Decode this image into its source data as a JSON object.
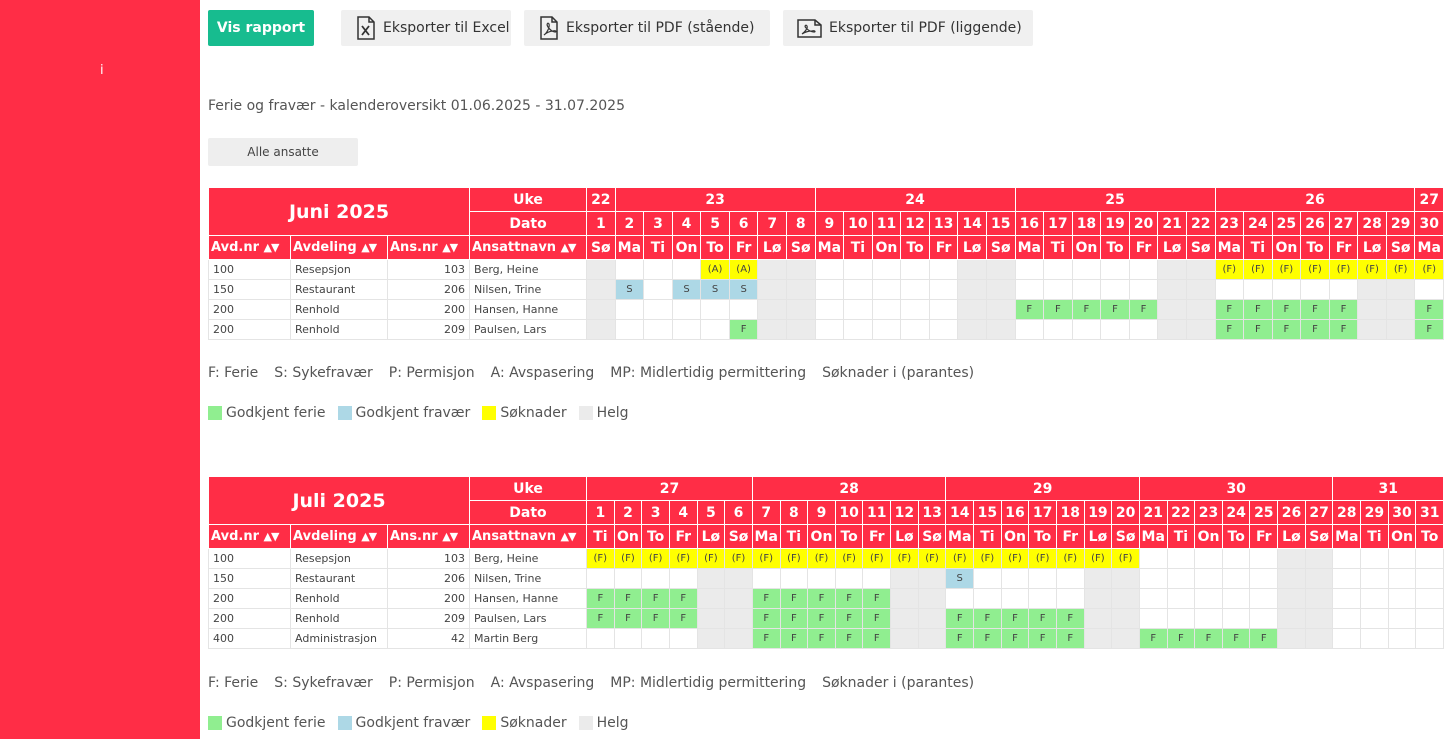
{
  "sidebar": {
    "mark": "i"
  },
  "toolbar": {
    "show_report": "Vis rapport",
    "export_excel": "Eksporter til Excel",
    "export_pdf_portrait": "Eksporter til PDF (stående)",
    "export_pdf_landscape": "Eksporter til PDF (liggende)"
  },
  "report_title": "Ferie og fravær - kalenderoversikt 01.06.2025 - 31.07.2025",
  "filter_label": "Alle ansatte",
  "legend": {
    "codes": [
      "F: Ferie",
      "S: Sykefravær",
      "P: Permisjon",
      "A: Avspasering",
      "MP: Midlertidig permittering",
      "Søknader i (parantes)"
    ],
    "colors": [
      {
        "label": "Godkjent ferie",
        "color": "#90ee90"
      },
      {
        "label": "Godkjent fravær",
        "color": "#add8e6"
      },
      {
        "label": "Søknader",
        "color": "#ffff00"
      },
      {
        "label": "Helg",
        "color": "#ebebeb"
      }
    ]
  },
  "columns": {
    "week": "Uke",
    "date": "Dato",
    "dept_no": "Avd.nr",
    "dept": "Avdeling",
    "emp_no": "Ans.nr",
    "emp_name": "Ansattnavn",
    "sort_arrows": "▲▼"
  },
  "months": [
    {
      "title": "Juni 2025",
      "start_weekday": 6,
      "days": 30,
      "weeks": [
        {
          "label": "22",
          "span": 1
        },
        {
          "label": "23",
          "span": 7
        },
        {
          "label": "24",
          "span": 7
        },
        {
          "label": "25",
          "span": 7
        },
        {
          "label": "26",
          "span": 7
        },
        {
          "label": "27",
          "span": 1
        }
      ],
      "rows": [
        {
          "dept_no": "100",
          "dept": "Resepsjon",
          "emp_no": "103",
          "name": "Berg, Heine",
          "entries": [
            {
              "day": 5,
              "code": "(A)",
              "type": "A"
            },
            {
              "day": 6,
              "code": "(A)",
              "type": "A"
            },
            {
              "day": 23,
              "code": "(F)",
              "type": "A"
            },
            {
              "day": 24,
              "code": "(F)",
              "type": "A"
            },
            {
              "day": 25,
              "code": "(F)",
              "type": "A"
            },
            {
              "day": 26,
              "code": "(F)",
              "type": "A"
            },
            {
              "day": 27,
              "code": "(F)",
              "type": "A"
            },
            {
              "day": 28,
              "code": "(F)",
              "type": "A"
            },
            {
              "day": 29,
              "code": "(F)",
              "type": "A"
            },
            {
              "day": 30,
              "code": "(F)",
              "type": "A"
            }
          ]
        },
        {
          "dept_no": "150",
          "dept": "Restaurant",
          "emp_no": "206",
          "name": "Nilsen, Trine",
          "entries": [
            {
              "day": 2,
              "code": "S",
              "type": "S"
            },
            {
              "day": 4,
              "code": "S",
              "type": "S"
            },
            {
              "day": 5,
              "code": "S",
              "type": "S"
            },
            {
              "day": 6,
              "code": "S",
              "type": "S"
            }
          ]
        },
        {
          "dept_no": "200",
          "dept": "Renhold",
          "emp_no": "200",
          "name": "Hansen, Hanne",
          "entries": [
            {
              "day": 16,
              "code": "F",
              "type": "F"
            },
            {
              "day": 17,
              "code": "F",
              "type": "F"
            },
            {
              "day": 18,
              "code": "F",
              "type": "F"
            },
            {
              "day": 19,
              "code": "F",
              "type": "F"
            },
            {
              "day": 20,
              "code": "F",
              "type": "F"
            },
            {
              "day": 23,
              "code": "F",
              "type": "F"
            },
            {
              "day": 24,
              "code": "F",
              "type": "F"
            },
            {
              "day": 25,
              "code": "F",
              "type": "F"
            },
            {
              "day": 26,
              "code": "F",
              "type": "F"
            },
            {
              "day": 27,
              "code": "F",
              "type": "F"
            },
            {
              "day": 30,
              "code": "F",
              "type": "F"
            }
          ]
        },
        {
          "dept_no": "200",
          "dept": "Renhold",
          "emp_no": "209",
          "name": "Paulsen, Lars",
          "entries": [
            {
              "day": 6,
              "code": "F",
              "type": "F"
            },
            {
              "day": 23,
              "code": "F",
              "type": "F"
            },
            {
              "day": 24,
              "code": "F",
              "type": "F"
            },
            {
              "day": 25,
              "code": "F",
              "type": "F"
            },
            {
              "day": 26,
              "code": "F",
              "type": "F"
            },
            {
              "day": 27,
              "code": "F",
              "type": "F"
            },
            {
              "day": 30,
              "code": "F",
              "type": "F"
            }
          ]
        }
      ]
    },
    {
      "title": "Juli 2025",
      "start_weekday": 1,
      "days": 31,
      "weeks": [
        {
          "label": "27",
          "span": 6
        },
        {
          "label": "28",
          "span": 7
        },
        {
          "label": "29",
          "span": 7
        },
        {
          "label": "30",
          "span": 7
        },
        {
          "label": "31",
          "span": 4
        }
      ],
      "rows": [
        {
          "dept_no": "100",
          "dept": "Resepsjon",
          "emp_no": "103",
          "name": "Berg, Heine",
          "entries": [
            {
              "day": 1,
              "code": "(F)",
              "type": "A"
            },
            {
              "day": 2,
              "code": "(F)",
              "type": "A"
            },
            {
              "day": 3,
              "code": "(F)",
              "type": "A"
            },
            {
              "day": 4,
              "code": "(F)",
              "type": "A"
            },
            {
              "day": 5,
              "code": "(F)",
              "type": "A"
            },
            {
              "day": 6,
              "code": "(F)",
              "type": "A"
            },
            {
              "day": 7,
              "code": "(F)",
              "type": "A"
            },
            {
              "day": 8,
              "code": "(F)",
              "type": "A"
            },
            {
              "day": 9,
              "code": "(F)",
              "type": "A"
            },
            {
              "day": 10,
              "code": "(F)",
              "type": "A"
            },
            {
              "day": 11,
              "code": "(F)",
              "type": "A"
            },
            {
              "day": 12,
              "code": "(F)",
              "type": "A"
            },
            {
              "day": 13,
              "code": "(F)",
              "type": "A"
            },
            {
              "day": 14,
              "code": "(F)",
              "type": "A"
            },
            {
              "day": 15,
              "code": "(F)",
              "type": "A"
            },
            {
              "day": 16,
              "code": "(F)",
              "type": "A"
            },
            {
              "day": 17,
              "code": "(F)",
              "type": "A"
            },
            {
              "day": 18,
              "code": "(F)",
              "type": "A"
            },
            {
              "day": 19,
              "code": "(F)",
              "type": "A"
            },
            {
              "day": 20,
              "code": "(F)",
              "type": "A"
            }
          ]
        },
        {
          "dept_no": "150",
          "dept": "Restaurant",
          "emp_no": "206",
          "name": "Nilsen, Trine",
          "entries": [
            {
              "day": 14,
              "code": "S",
              "type": "S"
            }
          ]
        },
        {
          "dept_no": "200",
          "dept": "Renhold",
          "emp_no": "200",
          "name": "Hansen, Hanne",
          "entries": [
            {
              "day": 1,
              "code": "F",
              "type": "F"
            },
            {
              "day": 2,
              "code": "F",
              "type": "F"
            },
            {
              "day": 3,
              "code": "F",
              "type": "F"
            },
            {
              "day": 4,
              "code": "F",
              "type": "F"
            },
            {
              "day": 7,
              "code": "F",
              "type": "F"
            },
            {
              "day": 8,
              "code": "F",
              "type": "F"
            },
            {
              "day": 9,
              "code": "F",
              "type": "F"
            },
            {
              "day": 10,
              "code": "F",
              "type": "F"
            },
            {
              "day": 11,
              "code": "F",
              "type": "F"
            }
          ]
        },
        {
          "dept_no": "200",
          "dept": "Renhold",
          "emp_no": "209",
          "name": "Paulsen, Lars",
          "entries": [
            {
              "day": 1,
              "code": "F",
              "type": "F"
            },
            {
              "day": 2,
              "code": "F",
              "type": "F"
            },
            {
              "day": 3,
              "code": "F",
              "type": "F"
            },
            {
              "day": 4,
              "code": "F",
              "type": "F"
            },
            {
              "day": 7,
              "code": "F",
              "type": "F"
            },
            {
              "day": 8,
              "code": "F",
              "type": "F"
            },
            {
              "day": 9,
              "code": "F",
              "type": "F"
            },
            {
              "day": 10,
              "code": "F",
              "type": "F"
            },
            {
              "day": 11,
              "code": "F",
              "type": "F"
            },
            {
              "day": 14,
              "code": "F",
              "type": "F"
            },
            {
              "day": 15,
              "code": "F",
              "type": "F"
            },
            {
              "day": 16,
              "code": "F",
              "type": "F"
            },
            {
              "day": 17,
              "code": "F",
              "type": "F"
            },
            {
              "day": 18,
              "code": "F",
              "type": "F"
            }
          ]
        },
        {
          "dept_no": "400",
          "dept": "Administrasjon",
          "emp_no": "42",
          "name": "Martin Berg",
          "entries": [
            {
              "day": 7,
              "code": "F",
              "type": "F"
            },
            {
              "day": 8,
              "code": "F",
              "type": "F"
            },
            {
              "day": 9,
              "code": "F",
              "type": "F"
            },
            {
              "day": 10,
              "code": "F",
              "type": "F"
            },
            {
              "day": 11,
              "code": "F",
              "type": "F"
            },
            {
              "day": 14,
              "code": "F",
              "type": "F"
            },
            {
              "day": 15,
              "code": "F",
              "type": "F"
            },
            {
              "day": 16,
              "code": "F",
              "type": "F"
            },
            {
              "day": 17,
              "code": "F",
              "type": "F"
            },
            {
              "day": 18,
              "code": "F",
              "type": "F"
            },
            {
              "day": 21,
              "code": "F",
              "type": "F"
            },
            {
              "day": 22,
              "code": "F",
              "type": "F"
            },
            {
              "day": 23,
              "code": "F",
              "type": "F"
            },
            {
              "day": 24,
              "code": "F",
              "type": "F"
            },
            {
              "day": 25,
              "code": "F",
              "type": "F"
            }
          ]
        }
      ]
    }
  ],
  "weekday_labels": [
    "Ma",
    "Ti",
    "On",
    "To",
    "Fr",
    "Lø",
    "Sø"
  ]
}
